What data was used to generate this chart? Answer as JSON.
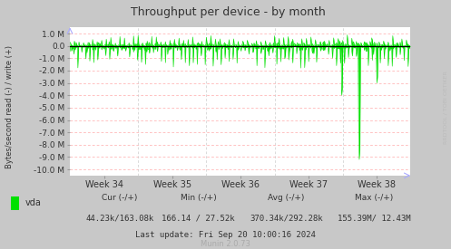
{
  "title": "Throughput per device - by month",
  "ylabel": "Bytes/second read (-) / write (+)",
  "ylim": [
    -10500000,
    1500000
  ],
  "yticks": [
    1000000,
    0.0,
    -1000000,
    -2000000,
    -3000000,
    -4000000,
    -5000000,
    -6000000,
    -7000000,
    -8000000,
    -9000000,
    -10000000
  ],
  "ytick_labels": [
    "1.0 M",
    "0.0",
    "-1.0 M",
    "-2.0 M",
    "-3.0 M",
    "-4.0 M",
    "-5.0 M",
    "-6.0 M",
    "-7.0 M",
    "-8.0 M",
    "-9.0 M",
    "-10.0 M"
  ],
  "xtick_labels": [
    "Week 34",
    "Week 35",
    "Week 36",
    "Week 37",
    "Week 38"
  ],
  "bg_color": "#c8c8c8",
  "plot_bg_color": "#ffffff",
  "hgrid_color": "#ffaaaa",
  "vgrid_color": "#cccccc",
  "line_color": "#00e000",
  "fill_color": "#00e000",
  "legend_label": "vda",
  "legend_color": "#00e000",
  "cur": "44.23k/163.08k",
  "min_val": "166.14 / 27.52k",
  "avg": "370.34k/292.28k",
  "max_val": "155.39M/ 12.43M",
  "last_update": "Last update: Fri Sep 20 10:00:16 2024",
  "munin_version": "Munin 2.0.73",
  "rrdtool_label": "RRDTOOL / TOBI OETIKER",
  "num_points": 600,
  "seed": 42
}
